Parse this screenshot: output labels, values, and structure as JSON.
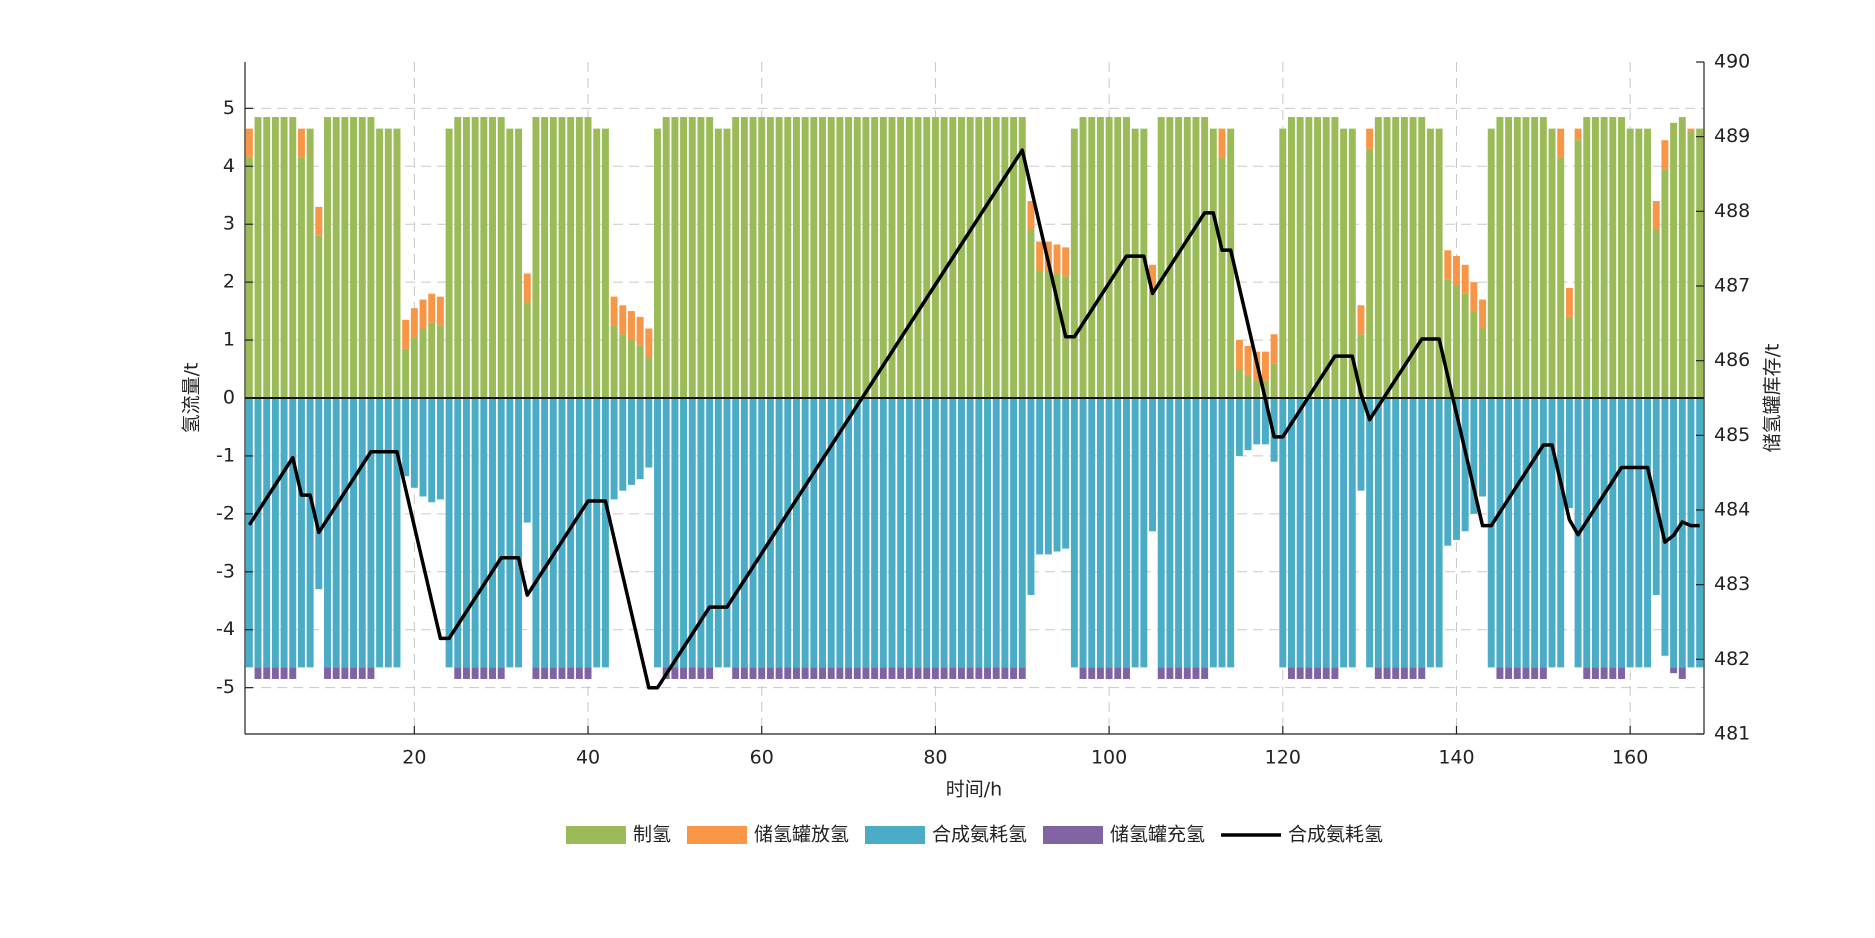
{
  "chart_data": {
    "type": "bar_line",
    "xlabel": "时间/h",
    "ylabel": "氢流量/t",
    "y2label": "储氢罐库存/t",
    "x": [
      1,
      2,
      3,
      4,
      5,
      6,
      7,
      8,
      9,
      10,
      11,
      12,
      13,
      14,
      15,
      16,
      17,
      18,
      19,
      20,
      21,
      22,
      23,
      24,
      25,
      26,
      27,
      28,
      29,
      30,
      31,
      32,
      33,
      34,
      35,
      36,
      37,
      38,
      39,
      40,
      41,
      42,
      43,
      44,
      45,
      46,
      47,
      48,
      49,
      50,
      51,
      52,
      53,
      54,
      55,
      56,
      57,
      58,
      59,
      60,
      61,
      62,
      63,
      64,
      65,
      66,
      67,
      68,
      69,
      70,
      71,
      72,
      73,
      74,
      75,
      76,
      77,
      78,
      79,
      80,
      81,
      82,
      83,
      84,
      85,
      86,
      87,
      88,
      89,
      90,
      91,
      92,
      93,
      94,
      95,
      96,
      97,
      98,
      99,
      100,
      101,
      102,
      103,
      104,
      105,
      106,
      107,
      108,
      109,
      110,
      111,
      112,
      113,
      114,
      115,
      116,
      117,
      118,
      119,
      120,
      121,
      122,
      123,
      124,
      125,
      126,
      127,
      128,
      129,
      130,
      131,
      132,
      133,
      134,
      135,
      136,
      137,
      138,
      139,
      140,
      141,
      142,
      143,
      144,
      145,
      146,
      147,
      148,
      149,
      150,
      151,
      152,
      153,
      154,
      155,
      156,
      157,
      158,
      159,
      160,
      161,
      162,
      163,
      164,
      165,
      166,
      167,
      168
    ],
    "xlim": [
      0.5,
      168.5
    ],
    "xticks": [
      20,
      40,
      60,
      80,
      100,
      120,
      140,
      160
    ],
    "ylim": [
      -5.8,
      5.8
    ],
    "yticks": [
      -5,
      -4,
      -3,
      -2,
      -1,
      0,
      1,
      2,
      3,
      4,
      5
    ],
    "y2lim": [
      481,
      490
    ],
    "y2ticks": [
      481,
      482,
      483,
      484,
      485,
      486,
      487,
      488,
      489,
      490
    ],
    "grid": true,
    "legend": "bottom",
    "series": [
      {
        "name": "制氢",
        "color": "#9bbb59",
        "kind": "bar",
        "values": [
          4.15,
          4.85,
          4.85,
          4.85,
          4.85,
          4.85,
          4.15,
          4.65,
          2.8,
          4.85,
          4.85,
          4.85,
          4.85,
          4.85,
          4.85,
          4.65,
          4.65,
          4.65,
          0.85,
          1.05,
          1.2,
          1.3,
          1.25,
          4.65,
          4.85,
          4.85,
          4.85,
          4.85,
          4.85,
          4.85,
          4.65,
          4.65,
          1.65,
          4.85,
          4.85,
          4.85,
          4.85,
          4.85,
          4.85,
          4.85,
          4.65,
          4.65,
          1.25,
          1.1,
          1.0,
          0.9,
          0.7,
          4.65,
          4.85,
          4.85,
          4.85,
          4.85,
          4.85,
          4.85,
          4.65,
          4.65,
          4.85,
          4.85,
          4.85,
          4.85,
          4.85,
          4.85,
          4.85,
          4.85,
          4.85,
          4.85,
          4.85,
          4.85,
          4.85,
          4.85,
          4.85,
          4.85,
          4.85,
          4.85,
          4.85,
          4.85,
          4.85,
          4.85,
          4.85,
          4.85,
          4.85,
          4.85,
          4.85,
          4.85,
          4.85,
          4.85,
          4.85,
          4.85,
          4.85,
          4.85,
          2.9,
          2.2,
          2.2,
          2.15,
          2.1,
          4.65,
          4.85,
          4.85,
          4.85,
          4.85,
          4.85,
          4.85,
          4.65,
          4.65,
          1.8,
          4.85,
          4.85,
          4.85,
          4.85,
          4.85,
          4.85,
          4.65,
          4.15,
          4.65,
          0.5,
          0.4,
          0.3,
          0.3,
          0.6,
          4.65,
          4.85,
          4.85,
          4.85,
          4.85,
          4.85,
          4.85,
          4.65,
          4.65,
          1.1,
          4.3,
          4.85,
          4.85,
          4.85,
          4.85,
          4.85,
          4.85,
          4.65,
          4.65,
          2.05,
          1.95,
          1.8,
          1.5,
          1.2,
          4.65,
          4.85,
          4.85,
          4.85,
          4.85,
          4.85,
          4.85,
          4.65,
          4.15,
          1.4,
          4.45,
          4.85,
          4.85,
          4.85,
          4.85,
          4.85,
          4.65,
          4.65,
          4.65,
          2.9,
          3.95,
          4.75,
          4.85,
          4.6,
          4.65
        ]
      },
      {
        "name": "储氢罐放氢",
        "color": "#f79646",
        "kind": "bar",
        "values": [
          0.5,
          0,
          0,
          0,
          0,
          0,
          0.5,
          0,
          0.5,
          0,
          0,
          0,
          0,
          0,
          0,
          0,
          0,
          0,
          0.5,
          0.5,
          0.5,
          0.5,
          0.5,
          0,
          0,
          0,
          0,
          0,
          0,
          0,
          0,
          0,
          0.5,
          0,
          0,
          0,
          0,
          0,
          0,
          0,
          0,
          0,
          0.5,
          0.5,
          0.5,
          0.5,
          0.5,
          0,
          0,
          0,
          0,
          0,
          0,
          0,
          0,
          0,
          0,
          0,
          0,
          0,
          0,
          0,
          0,
          0,
          0,
          0,
          0,
          0,
          0,
          0,
          0,
          0,
          0,
          0,
          0,
          0,
          0,
          0,
          0,
          0,
          0,
          0,
          0,
          0,
          0,
          0,
          0,
          0,
          0,
          0,
          0.5,
          0.5,
          0.5,
          0.5,
          0.5,
          0,
          0,
          0,
          0,
          0,
          0,
          0,
          0,
          0,
          0.5,
          0,
          0,
          0,
          0,
          0,
          0,
          0,
          0.5,
          0,
          0.5,
          0.5,
          0.5,
          0.5,
          0.5,
          0,
          0,
          0,
          0,
          0,
          0,
          0,
          0,
          0,
          0.5,
          0.35,
          0,
          0,
          0,
          0,
          0,
          0,
          0,
          0,
          0.5,
          0.5,
          0.5,
          0.5,
          0.5,
          0,
          0,
          0,
          0,
          0,
          0,
          0,
          0,
          0.5,
          0.5,
          0.2,
          0,
          0,
          0,
          0,
          0,
          0,
          0,
          0,
          0.5,
          0.5,
          0,
          0,
          0.05,
          0
        ]
      },
      {
        "name": "合成氨耗氢",
        "color": "#4bacc6",
        "kind": "bar",
        "values": [
          -4.65,
          -4.65,
          -4.65,
          -4.65,
          -4.65,
          -4.65,
          -4.65,
          -4.65,
          -3.3,
          -4.65,
          -4.65,
          -4.65,
          -4.65,
          -4.65,
          -4.65,
          -4.65,
          -4.65,
          -4.65,
          -1.35,
          -1.55,
          -1.7,
          -1.8,
          -1.75,
          -4.65,
          -4.65,
          -4.65,
          -4.65,
          -4.65,
          -4.65,
          -4.65,
          -4.65,
          -4.65,
          -2.15,
          -4.65,
          -4.65,
          -4.65,
          -4.65,
          -4.65,
          -4.65,
          -4.65,
          -4.65,
          -4.65,
          -1.75,
          -1.6,
          -1.5,
          -1.4,
          -1.2,
          -4.65,
          -4.65,
          -4.65,
          -4.65,
          -4.65,
          -4.65,
          -4.65,
          -4.65,
          -4.65,
          -4.65,
          -4.65,
          -4.65,
          -4.65,
          -4.65,
          -4.65,
          -4.65,
          -4.65,
          -4.65,
          -4.65,
          -4.65,
          -4.65,
          -4.65,
          -4.65,
          -4.65,
          -4.65,
          -4.65,
          -4.65,
          -4.65,
          -4.65,
          -4.65,
          -4.65,
          -4.65,
          -4.65,
          -4.65,
          -4.65,
          -4.65,
          -4.65,
          -4.65,
          -4.65,
          -4.65,
          -4.65,
          -4.65,
          -4.65,
          -3.4,
          -2.7,
          -2.7,
          -2.65,
          -2.6,
          -4.65,
          -4.65,
          -4.65,
          -4.65,
          -4.65,
          -4.65,
          -4.65,
          -4.65,
          -4.65,
          -2.3,
          -4.65,
          -4.65,
          -4.65,
          -4.65,
          -4.65,
          -4.65,
          -4.65,
          -4.65,
          -4.65,
          -1.0,
          -0.9,
          -0.8,
          -0.8,
          -1.1,
          -4.65,
          -4.65,
          -4.65,
          -4.65,
          -4.65,
          -4.65,
          -4.65,
          -4.65,
          -4.65,
          -1.6,
          -4.65,
          -4.65,
          -4.65,
          -4.65,
          -4.65,
          -4.65,
          -4.65,
          -4.65,
          -4.65,
          -2.55,
          -2.45,
          -2.3,
          -2.0,
          -1.7,
          -4.65,
          -4.65,
          -4.65,
          -4.65,
          -4.65,
          -4.65,
          -4.65,
          -4.65,
          -4.65,
          -1.9,
          -4.65,
          -4.65,
          -4.65,
          -4.65,
          -4.65,
          -4.65,
          -4.65,
          -4.65,
          -4.65,
          -3.4,
          -4.45,
          -4.65,
          -4.65,
          -4.65,
          -4.65
        ]
      },
      {
        "name": "储氢罐充氢",
        "color": "#8064a2",
        "kind": "bar",
        "values": [
          0,
          -0.2,
          -0.2,
          -0.2,
          -0.2,
          -0.2,
          0,
          0,
          0,
          -0.2,
          -0.2,
          -0.2,
          -0.2,
          -0.2,
          -0.2,
          0,
          0,
          0,
          0,
          0,
          0,
          0,
          0,
          0,
          -0.2,
          -0.2,
          -0.2,
          -0.2,
          -0.2,
          -0.2,
          0,
          0,
          0,
          -0.2,
          -0.2,
          -0.2,
          -0.2,
          -0.2,
          -0.2,
          -0.2,
          0,
          0,
          0,
          0,
          0,
          0,
          0,
          0,
          -0.2,
          -0.2,
          -0.2,
          -0.2,
          -0.2,
          -0.2,
          0,
          0,
          -0.2,
          -0.2,
          -0.2,
          -0.2,
          -0.2,
          -0.2,
          -0.2,
          -0.2,
          -0.2,
          -0.2,
          -0.2,
          -0.2,
          -0.2,
          -0.2,
          -0.2,
          -0.2,
          -0.2,
          -0.2,
          -0.2,
          -0.2,
          -0.2,
          -0.2,
          -0.2,
          -0.2,
          -0.2,
          -0.2,
          -0.2,
          -0.2,
          -0.2,
          -0.2,
          -0.2,
          -0.2,
          -0.2,
          -0.2,
          0,
          0,
          0,
          0,
          0,
          0,
          -0.2,
          -0.2,
          -0.2,
          -0.2,
          -0.2,
          -0.2,
          0,
          0,
          0,
          -0.2,
          -0.2,
          -0.2,
          -0.2,
          -0.2,
          -0.2,
          0,
          0,
          0,
          0,
          0,
          0,
          0,
          0,
          0,
          -0.2,
          -0.2,
          -0.2,
          -0.2,
          -0.2,
          -0.2,
          0,
          0,
          0,
          0,
          -0.2,
          -0.2,
          -0.2,
          -0.2,
          -0.2,
          -0.2,
          0,
          0,
          0,
          0,
          0,
          0,
          0,
          0,
          -0.2,
          -0.2,
          -0.2,
          -0.2,
          -0.2,
          -0.2,
          0,
          0,
          0,
          0,
          -0.2,
          -0.2,
          -0.2,
          -0.2,
          -0.2,
          0,
          0,
          0,
          0,
          0,
          -0.1,
          -0.2,
          0,
          0
        ]
      },
      {
        "name": "合成氨耗氢",
        "color": "#000000",
        "kind": "line",
        "axis": "y2",
        "values": [
          483.8,
          483.98,
          484.16,
          484.34,
          484.52,
          484.7,
          484.2,
          484.2,
          483.7,
          483.88,
          484.06,
          484.24,
          484.42,
          484.6,
          484.78,
          484.78,
          484.78,
          484.78,
          484.28,
          483.78,
          483.28,
          482.78,
          482.28,
          482.28,
          482.46,
          482.64,
          482.82,
          483.0,
          483.18,
          483.36,
          483.36,
          483.36,
          482.86,
          483.04,
          483.22,
          483.4,
          483.58,
          483.76,
          483.94,
          484.12,
          484.12,
          484.12,
          483.62,
          483.12,
          482.62,
          482.12,
          481.62,
          481.62,
          481.8,
          481.98,
          482.16,
          482.34,
          482.52,
          482.7,
          482.7,
          482.7,
          482.88,
          483.06,
          483.24,
          483.42,
          483.6,
          483.78,
          483.96,
          484.14,
          484.32,
          484.5,
          484.68,
          484.86,
          485.04,
          485.22,
          485.4,
          485.58,
          485.76,
          485.94,
          486.12,
          486.3,
          486.48,
          486.66,
          486.84,
          487.02,
          487.2,
          487.38,
          487.56,
          487.74,
          487.92,
          488.1,
          488.28,
          488.46,
          488.64,
          488.82,
          488.32,
          487.82,
          487.32,
          486.82,
          486.32,
          486.32,
          486.5,
          486.68,
          486.86,
          487.04,
          487.22,
          487.4,
          487.4,
          487.4,
          486.9,
          487.08,
          487.26,
          487.44,
          487.62,
          487.8,
          487.98,
          487.98,
          487.48,
          487.48,
          486.98,
          486.48,
          485.98,
          485.48,
          484.98,
          484.98,
          485.16,
          485.34,
          485.52,
          485.7,
          485.88,
          486.06,
          486.06,
          486.06,
          485.56,
          485.21,
          485.39,
          485.57,
          485.75,
          485.93,
          486.11,
          486.29,
          486.29,
          486.29,
          485.79,
          485.29,
          484.79,
          484.29,
          483.79,
          483.79,
          483.97,
          484.15,
          484.33,
          484.51,
          484.69,
          484.87,
          484.87,
          484.37,
          483.87,
          483.67,
          483.85,
          484.03,
          484.21,
          484.39,
          484.57,
          484.57,
          484.57,
          484.57,
          484.07,
          483.57,
          483.66,
          483.84,
          483.79,
          483.79
        ]
      }
    ]
  }
}
